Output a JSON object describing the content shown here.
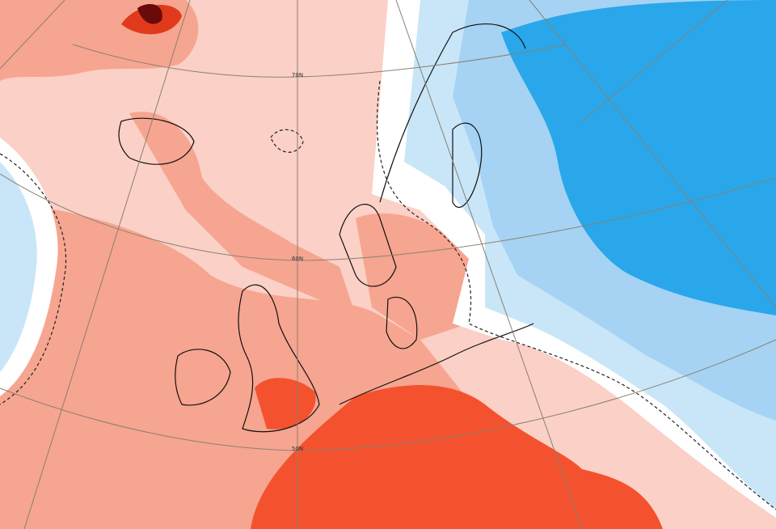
{
  "latitude_labels": [
    "70N",
    "60N",
    "50N"
  ]
}
